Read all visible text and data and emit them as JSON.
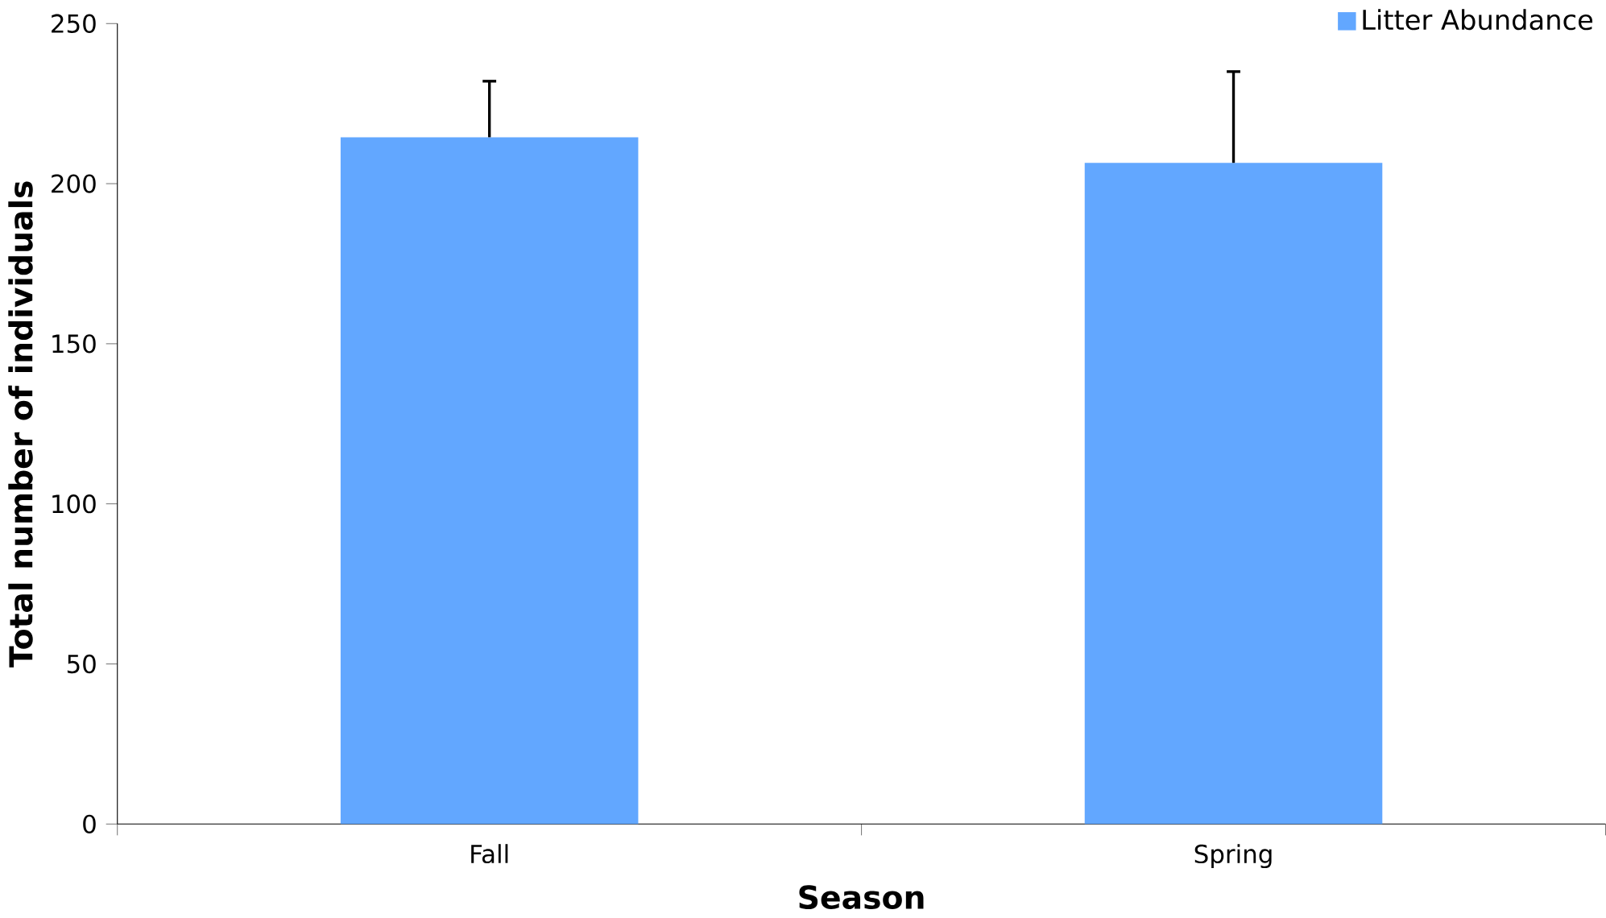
{
  "chart_data": {
    "type": "bar",
    "xlabel": "Season",
    "ylabel": "Total number of individuals",
    "categories": [
      "Fall",
      "Spring"
    ],
    "series": [
      {
        "name": "Litter Abundance",
        "color": "#62a7ff",
        "values": [
          214.5,
          206.5
        ],
        "errors": [
          [
            214.5,
            232
          ],
          [
            206.5,
            235
          ]
        ]
      }
    ],
    "ylim": [
      0,
      250
    ],
    "yticks": [
      0,
      50,
      100,
      150,
      200,
      250
    ],
    "grid": false,
    "legend": "top right"
  }
}
